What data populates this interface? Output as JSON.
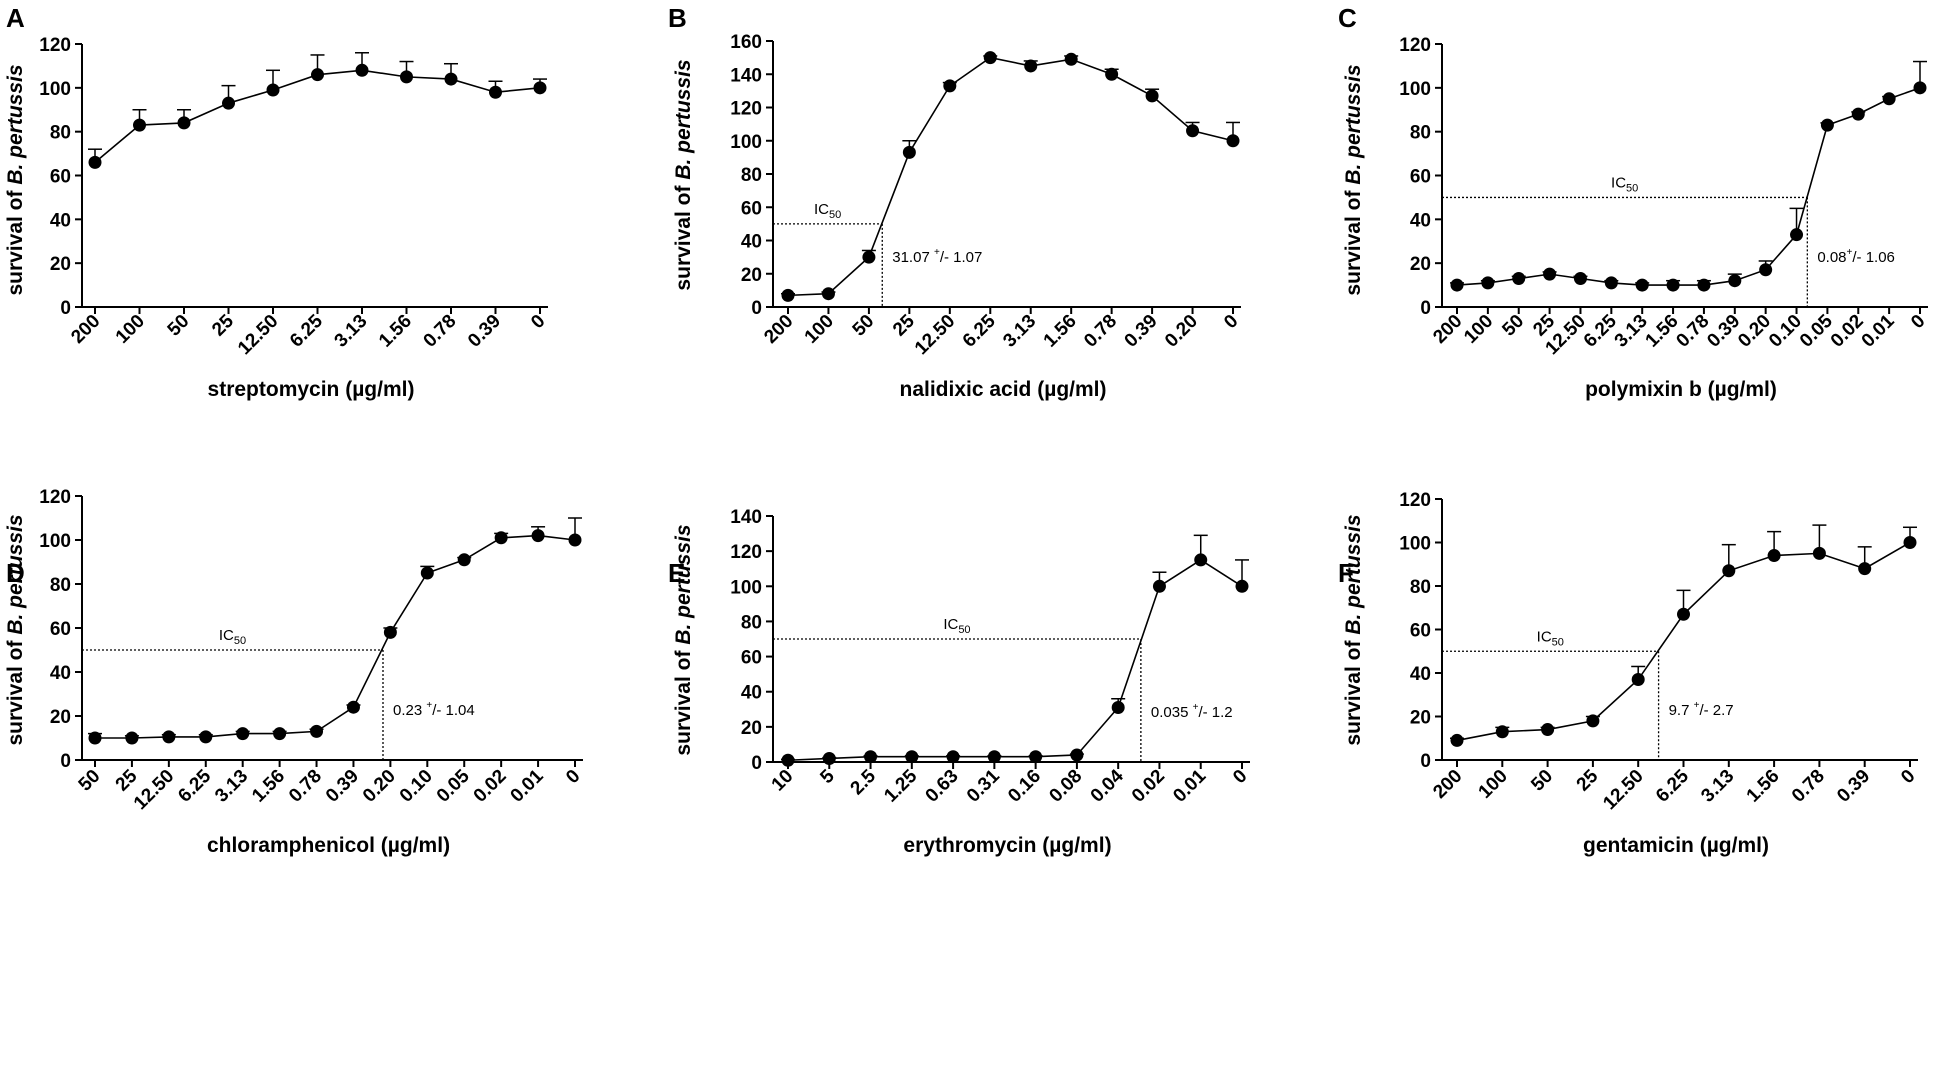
{
  "chart_data": [
    {
      "panel": "A",
      "type": "line",
      "title": "",
      "xlabel": "streptomycin (µg/ml)",
      "ylabel_prefix": "survival of ",
      "ylabel_italic": "B. pertussis",
      "ylim": [
        0,
        120
      ],
      "yticks": [
        0,
        20,
        40,
        60,
        80,
        100,
        120
      ],
      "categories": [
        "200",
        "100",
        "50",
        "25",
        "12.50",
        "6.25",
        "3.13",
        "1.56",
        "0.78",
        "0.39",
        "0"
      ],
      "values": [
        66,
        83,
        84,
        93,
        99,
        106,
        108,
        105,
        104,
        98,
        100
      ],
      "errors": [
        6,
        7,
        6,
        8,
        9,
        9,
        8,
        7,
        7,
        5,
        4
      ]
    },
    {
      "panel": "B",
      "type": "line",
      "title": "",
      "xlabel": "nalidixic acid (µg/ml)",
      "ylabel_prefix": "survival of ",
      "ylabel_italic": "B. pertussis",
      "ylim": [
        0,
        160
      ],
      "yticks": [
        0,
        20,
        40,
        60,
        80,
        100,
        120,
        140,
        160
      ],
      "categories": [
        "200",
        "100",
        "50",
        "25",
        "12.50",
        "6.25",
        "3.13",
        "1.56",
        "0.78",
        "0.39",
        "0.20",
        "0"
      ],
      "values": [
        7,
        8,
        30,
        93,
        133,
        150,
        145,
        149,
        140,
        127,
        106,
        100
      ],
      "errors": [
        1,
        1,
        4,
        7,
        2,
        1,
        3,
        2,
        3,
        4,
        5,
        11
      ],
      "ic50": {
        "level": 50,
        "x_index": 2.33,
        "label": "IC",
        "subscript": "50",
        "annot_value": "31.07 ",
        "annot_sup": "+",
        "annot_rest": "/- 1.07"
      }
    },
    {
      "panel": "C",
      "type": "line",
      "title": "",
      "xlabel": "polymixin b (µg/ml)",
      "ylabel_prefix": "survival of ",
      "ylabel_italic": "B. pertussis",
      "ylim": [
        0,
        120
      ],
      "yticks": [
        0,
        20,
        40,
        60,
        80,
        100,
        120
      ],
      "categories": [
        "200",
        "100",
        "50",
        "25",
        "12.50",
        "6.25",
        "3.13",
        "1.56",
        "0.78",
        "0.39",
        "0.20",
        "0.10",
        "0.05",
        "0.02",
        "0.01",
        "0"
      ],
      "values": [
        10,
        11,
        13,
        15,
        13,
        11,
        10,
        10,
        10,
        12,
        17,
        33,
        83,
        88,
        95,
        100
      ],
      "errors": [
        1,
        1,
        1,
        1,
        1,
        1,
        1,
        2,
        2,
        3,
        4,
        12,
        1,
        1,
        1,
        12
      ],
      "ic50": {
        "level": 50,
        "x_index": 11.35,
        "label": "IC",
        "subscript": "50",
        "annot_value": "0.08",
        "annot_sup": "+",
        "annot_rest": "/- 1.06"
      }
    },
    {
      "panel": "D",
      "type": "line",
      "title": "",
      "xlabel": "chloramphenicol (µg/ml)",
      "ylabel_prefix": "survival of ",
      "ylabel_italic": "B. pertussis",
      "ylim": [
        0,
        120
      ],
      "yticks": [
        0,
        20,
        40,
        60,
        80,
        100,
        120
      ],
      "categories": [
        "50",
        "25",
        "12.50",
        "6.25",
        "3.13",
        "1.56",
        "0.78",
        "0.39",
        "0.20",
        "0.10",
        "0.05",
        "0.02",
        "0.01",
        "0"
      ],
      "values": [
        10,
        10,
        10.5,
        10.5,
        12,
        12,
        13,
        24,
        58,
        85,
        91,
        101,
        102,
        100
      ],
      "errors": [
        2,
        1,
        1,
        1,
        1,
        1,
        1,
        1,
        2,
        3,
        1,
        2,
        4,
        10
      ],
      "ic50": {
        "level": 50,
        "x_index": 7.8,
        "label": "IC",
        "subscript": "50",
        "annot_value": "0.23 ",
        "annot_sup": "+",
        "annot_rest": "/- 1.04"
      }
    },
    {
      "panel": "E",
      "type": "line",
      "title": "",
      "xlabel": "erythromycin (µg/ml)",
      "ylabel_prefix": "survival of ",
      "ylabel_italic": "B. pertussis",
      "ylim": [
        0,
        140
      ],
      "yticks": [
        0,
        20,
        40,
        60,
        80,
        100,
        120,
        140
      ],
      "categories": [
        "10",
        "5",
        "2.5",
        "1.25",
        "0.63",
        "0.31",
        "0.16",
        "0.08",
        "0.04",
        "0.02",
        "0.01",
        "0"
      ],
      "values": [
        1,
        2,
        3,
        3,
        3,
        3,
        3,
        4,
        31,
        100,
        115,
        100
      ],
      "errors": [
        0.5,
        0.5,
        0.5,
        0.5,
        0.5,
        0.5,
        0.5,
        0.5,
        5,
        8,
        14,
        15
      ],
      "ic50": {
        "level": 70,
        "x_index": 8.55,
        "label": "IC",
        "subscript": "50",
        "annot_value": "0.035 ",
        "annot_sup": "+",
        "annot_rest": "/- 1.2"
      }
    },
    {
      "panel": "F",
      "type": "line",
      "title": "",
      "xlabel": "gentamicin (µg/ml)",
      "ylabel_prefix": "survival of ",
      "ylabel_italic": "B. pertussis",
      "ylim": [
        0,
        120
      ],
      "yticks": [
        0,
        20,
        40,
        60,
        80,
        100,
        120
      ],
      "categories": [
        "200",
        "100",
        "50",
        "25",
        "12.50",
        "6.25",
        "3.13",
        "1.56",
        "0.78",
        "0.39",
        "0"
      ],
      "values": [
        9,
        13,
        14,
        18,
        37,
        67,
        87,
        94,
        95,
        88,
        100
      ],
      "errors": [
        1,
        2,
        1,
        2,
        6,
        11,
        12,
        11,
        13,
        10,
        7
      ],
      "ic50": {
        "level": 50,
        "x_index": 4.45,
        "label": "IC",
        "subscript": "50",
        "annot_value": "9.7 ",
        "annot_sup": "+",
        "annot_rest": "/- 2.7"
      }
    }
  ]
}
